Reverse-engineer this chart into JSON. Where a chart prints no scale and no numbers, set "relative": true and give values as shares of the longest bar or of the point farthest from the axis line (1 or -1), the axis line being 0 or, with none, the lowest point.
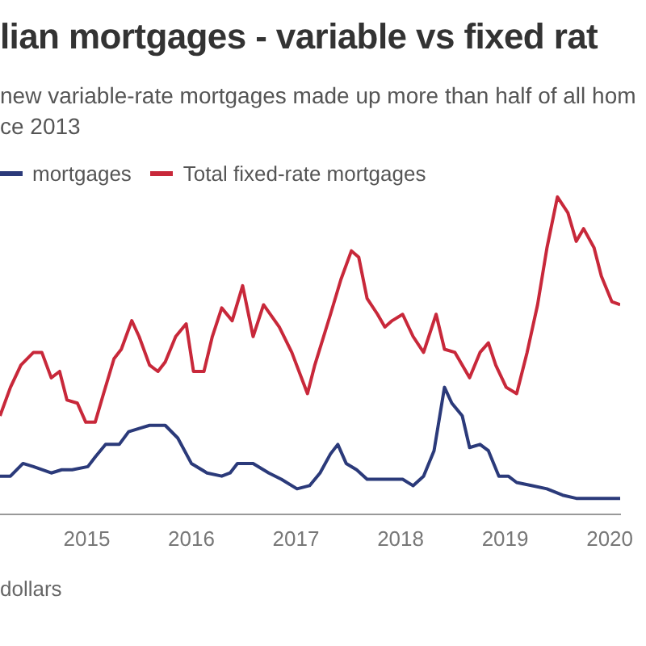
{
  "chart_data": {
    "type": "line",
    "title": "lian mortgages - variable vs fixed rat",
    "subtitle": "new variable-rate mortgages made up more than half of all hom\nce 2013",
    "annotations": [
      "dollars"
    ],
    "relative": true,
    "legend": "top left",
    "marker": "none",
    "xlim": [
      2014.17,
      2020.1
    ],
    "xticks": [
      2015,
      2016,
      2017,
      2018,
      2019,
      2020
    ],
    "series": [
      {
        "name": "mortgages",
        "color": "#2b3a7a",
        "x": [
          2014.17,
          2014.27,
          2014.39,
          2014.49,
          2014.66,
          2014.76,
          2014.86,
          2015.01,
          2015.08,
          2015.18,
          2015.31,
          2015.4,
          2015.5,
          2015.6,
          2015.75,
          2015.87,
          2016.0,
          2016.15,
          2016.29,
          2016.37,
          2016.44,
          2016.59,
          2016.74,
          2016.86,
          2017.01,
          2017.13,
          2017.23,
          2017.33,
          2017.4,
          2017.48,
          2017.58,
          2017.68,
          2017.8,
          2017.92,
          2018.02,
          2018.12,
          2018.22,
          2018.32,
          2018.42,
          2018.49,
          2018.59,
          2018.66,
          2018.76,
          2018.84,
          2018.94,
          2019.03,
          2019.11,
          2019.26,
          2019.4,
          2019.55,
          2019.68,
          2019.85,
          2020.0,
          2020.1
        ],
        "values": [
          0.12,
          0.12,
          0.16,
          0.15,
          0.13,
          0.14,
          0.14,
          0.15,
          0.18,
          0.22,
          0.22,
          0.26,
          0.27,
          0.28,
          0.28,
          0.24,
          0.16,
          0.13,
          0.12,
          0.13,
          0.16,
          0.16,
          0.13,
          0.11,
          0.08,
          0.09,
          0.13,
          0.19,
          0.22,
          0.16,
          0.14,
          0.11,
          0.11,
          0.11,
          0.11,
          0.09,
          0.12,
          0.2,
          0.4,
          0.35,
          0.31,
          0.21,
          0.22,
          0.2,
          0.12,
          0.12,
          0.1,
          0.09,
          0.08,
          0.06,
          0.05,
          0.05,
          0.05,
          0.05
        ]
      },
      {
        "name": "Total fixed-rate mortgages",
        "color": "#c8283a",
        "x": [
          2014.17,
          2014.27,
          2014.37,
          2014.49,
          2014.57,
          2014.66,
          2014.74,
          2014.81,
          2014.91,
          2014.99,
          2015.08,
          2015.16,
          2015.26,
          2015.33,
          2015.43,
          2015.5,
          2015.6,
          2015.68,
          2015.75,
          2015.85,
          2015.95,
          2016.02,
          2016.12,
          2016.2,
          2016.29,
          2016.39,
          2016.49,
          2016.59,
          2016.69,
          2016.84,
          2016.96,
          2017.11,
          2017.18,
          2017.33,
          2017.43,
          2017.53,
          2017.6,
          2017.68,
          2017.78,
          2017.85,
          2017.92,
          2018.02,
          2018.12,
          2018.22,
          2018.34,
          2018.42,
          2018.52,
          2018.66,
          2018.76,
          2018.84,
          2018.91,
          2019.01,
          2019.11,
          2019.21,
          2019.31,
          2019.4,
          2019.5,
          2019.6,
          2019.68,
          2019.75,
          2019.85,
          2019.92,
          2020.02,
          2020.1
        ],
        "values": [
          0.31,
          0.4,
          0.47,
          0.51,
          0.51,
          0.43,
          0.45,
          0.36,
          0.35,
          0.29,
          0.29,
          0.38,
          0.49,
          0.52,
          0.61,
          0.56,
          0.47,
          0.45,
          0.48,
          0.56,
          0.6,
          0.45,
          0.45,
          0.56,
          0.65,
          0.61,
          0.72,
          0.56,
          0.66,
          0.59,
          0.51,
          0.38,
          0.47,
          0.63,
          0.74,
          0.83,
          0.81,
          0.68,
          0.63,
          0.59,
          0.61,
          0.63,
          0.56,
          0.51,
          0.63,
          0.52,
          0.51,
          0.43,
          0.51,
          0.54,
          0.47,
          0.4,
          0.38,
          0.51,
          0.66,
          0.84,
          1,
          0.95,
          0.86,
          0.9,
          0.84,
          0.75,
          0.67,
          0.66
        ]
      }
    ]
  }
}
